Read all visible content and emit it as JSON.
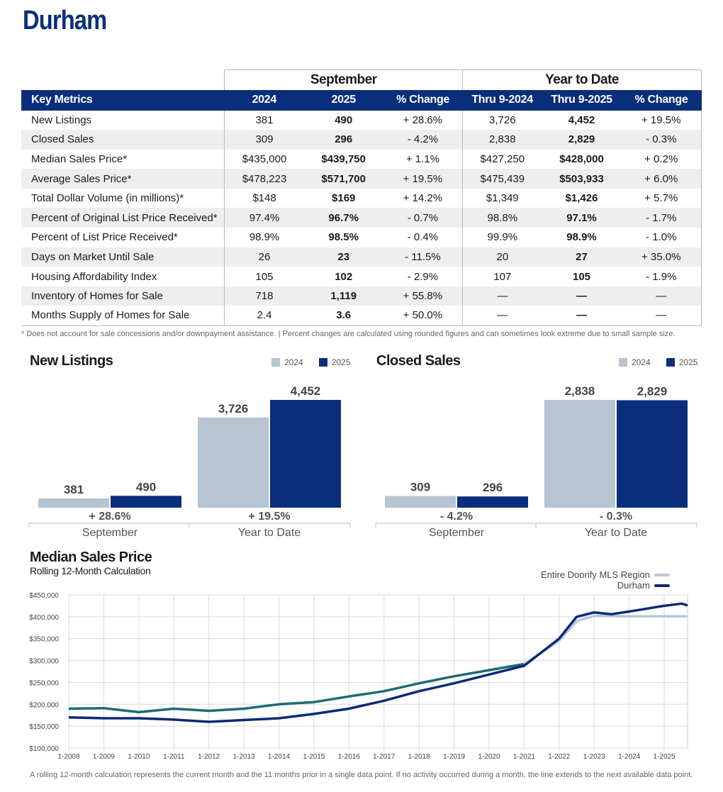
{
  "page_title": "Durham",
  "table": {
    "group_headers": [
      "September",
      "Year to Date"
    ],
    "columns": [
      "Key Metrics",
      "2024",
      "2025",
      "% Change",
      "Thru 9-2024",
      "Thru 9-2025",
      "% Change"
    ],
    "rows": [
      [
        "New Listings",
        "381",
        "490",
        "+ 28.6%",
        "3,726",
        "4,452",
        "+ 19.5%"
      ],
      [
        "Closed Sales",
        "309",
        "296",
        "- 4.2%",
        "2,838",
        "2,829",
        "- 0.3%"
      ],
      [
        "Median Sales Price*",
        "$435,000",
        "$439,750",
        "+ 1.1%",
        "$427,250",
        "$428,000",
        "+ 0.2%"
      ],
      [
        "Average Sales Price*",
        "$478,223",
        "$571,700",
        "+ 19.5%",
        "$475,439",
        "$503,933",
        "+ 6.0%"
      ],
      [
        "Total Dollar Volume (in millions)*",
        "$148",
        "$169",
        "+ 14.2%",
        "$1,349",
        "$1,426",
        "+ 5.7%"
      ],
      [
        "Percent of Original List Price Received*",
        "97.4%",
        "96.7%",
        "- 0.7%",
        "98.8%",
        "97.1%",
        "- 1.7%"
      ],
      [
        "Percent of List Price Received*",
        "98.9%",
        "98.5%",
        "- 0.4%",
        "99.9%",
        "98.9%",
        "- 1.0%"
      ],
      [
        "Days on Market Until Sale",
        "26",
        "23",
        "- 11.5%",
        "20",
        "27",
        "+ 35.0%"
      ],
      [
        "Housing Affordability Index",
        "105",
        "102",
        "- 2.9%",
        "107",
        "105",
        "- 1.9%"
      ],
      [
        "Inventory of Homes for Sale",
        "718",
        "1,119",
        "+ 55.8%",
        "—",
        "—",
        "—"
      ],
      [
        "Months Supply of Homes for Sale",
        "2.4",
        "3.6",
        "+ 50.0%",
        "—",
        "—",
        "—"
      ]
    ]
  },
  "footnote_table": "* Does not account for sale concessions and/or downpayment assistance. | Percent changes are calculated using rounded figures and can sometimes look extreme due to small sample size.",
  "footnote_line": "A rolling 12-month calculation represents the current month and the 11 months prior in a single data point. If no activity occurred during a month, the line extends to the next available data point.",
  "colors": {
    "navy": "#0b2e7c",
    "light": "#b7c4d2",
    "region_line": "#b9c8d6",
    "durham_line": "#0d2a78",
    "teal_line": "#1d6b78",
    "text": "#1a1a1a"
  },
  "chart_data": [
    {
      "type": "bar",
      "title": "New Listings",
      "legend": [
        "2024",
        "2025"
      ],
      "categories": [
        "September",
        "Year to Date"
      ],
      "series": [
        {
          "name": "2024",
          "values": [
            381,
            3726
          ],
          "labels": [
            "381",
            "3,726"
          ]
        },
        {
          "name": "2025",
          "values": [
            490,
            4452
          ],
          "labels": [
            "490",
            "4,452"
          ]
        }
      ],
      "change_labels": [
        "+ 28.6%",
        "+ 19.5%"
      ]
    },
    {
      "type": "bar",
      "title": "Closed Sales",
      "legend": [
        "2024",
        "2025"
      ],
      "categories": [
        "September",
        "Year to Date"
      ],
      "series": [
        {
          "name": "2024",
          "values": [
            309,
            2838
          ],
          "labels": [
            "309",
            "2,838"
          ]
        },
        {
          "name": "2025",
          "values": [
            296,
            2829
          ],
          "labels": [
            "296",
            "2,829"
          ]
        }
      ],
      "change_labels": [
        "- 4.2%",
        "- 0.3%"
      ]
    },
    {
      "type": "line",
      "title": "Median Sales Price",
      "subtitle": "Rolling 12-Month Calculation",
      "legend": [
        "Entire Doorify MLS Region",
        "Durham"
      ],
      "ylim": [
        100000,
        450000
      ],
      "y_ticks": [
        "$450,000",
        "$400,000",
        "$350,000",
        "$300,000",
        "$250,000",
        "$200,000",
        "$150,000",
        "$100,000"
      ],
      "x_ticks": [
        "1-2008",
        "1-2009",
        "1-2010",
        "1-2011",
        "1-2012",
        "1-2013",
        "1-2014",
        "1-2015",
        "1-2016",
        "1-2017",
        "1-2018",
        "1-2019",
        "1-2020",
        "1-2021",
        "1-2022",
        "1-2023",
        "1-2024",
        "1-2025"
      ],
      "x_range": [
        "1-2008",
        "9-2025"
      ],
      "series": [
        {
          "name": "Entire Doorify MLS Region",
          "points": [
            [
              "1-2008",
              190000
            ],
            [
              "1-2009",
              191000
            ],
            [
              "1-2010",
              182000
            ],
            [
              "1-2011",
              190000
            ],
            [
              "1-2012",
              185000
            ],
            [
              "1-2013",
              190000
            ],
            [
              "1-2014",
              200000
            ],
            [
              "1-2015",
              205000
            ],
            [
              "1-2016",
              218000
            ],
            [
              "1-2017",
              230000
            ],
            [
              "1-2018",
              248000
            ],
            [
              "1-2019",
              264000
            ],
            [
              "1-2020",
              278000
            ],
            [
              "1-2021",
              292000
            ],
            [
              "1-2022",
              345000
            ],
            [
              "7-2022",
              390000
            ],
            [
              "1-2023",
              402000
            ],
            [
              "1-2024",
              401000
            ],
            [
              "1-2025",
              401000
            ],
            [
              "9-2025",
              401000
            ]
          ]
        },
        {
          "name": "Durham",
          "points": [
            [
              "1-2008",
              170000
            ],
            [
              "1-2009",
              168000
            ],
            [
              "1-2010",
              168000
            ],
            [
              "1-2011",
              165000
            ],
            [
              "1-2012",
              160000
            ],
            [
              "1-2013",
              164000
            ],
            [
              "1-2014",
              168000
            ],
            [
              "1-2015",
              178000
            ],
            [
              "1-2016",
              190000
            ],
            [
              "1-2017",
              208000
            ],
            [
              "1-2018",
              230000
            ],
            [
              "1-2019",
              248000
            ],
            [
              "1-2020",
              268000
            ],
            [
              "1-2021",
              288000
            ],
            [
              "1-2022",
              350000
            ],
            [
              "7-2022",
              400000
            ],
            [
              "1-2023",
              410000
            ],
            [
              "7-2023",
              406000
            ],
            [
              "1-2024",
              412000
            ],
            [
              "1-2025",
              425000
            ],
            [
              "7-2025",
              430000
            ],
            [
              "9-2025",
              426000
            ]
          ]
        }
      ]
    }
  ]
}
